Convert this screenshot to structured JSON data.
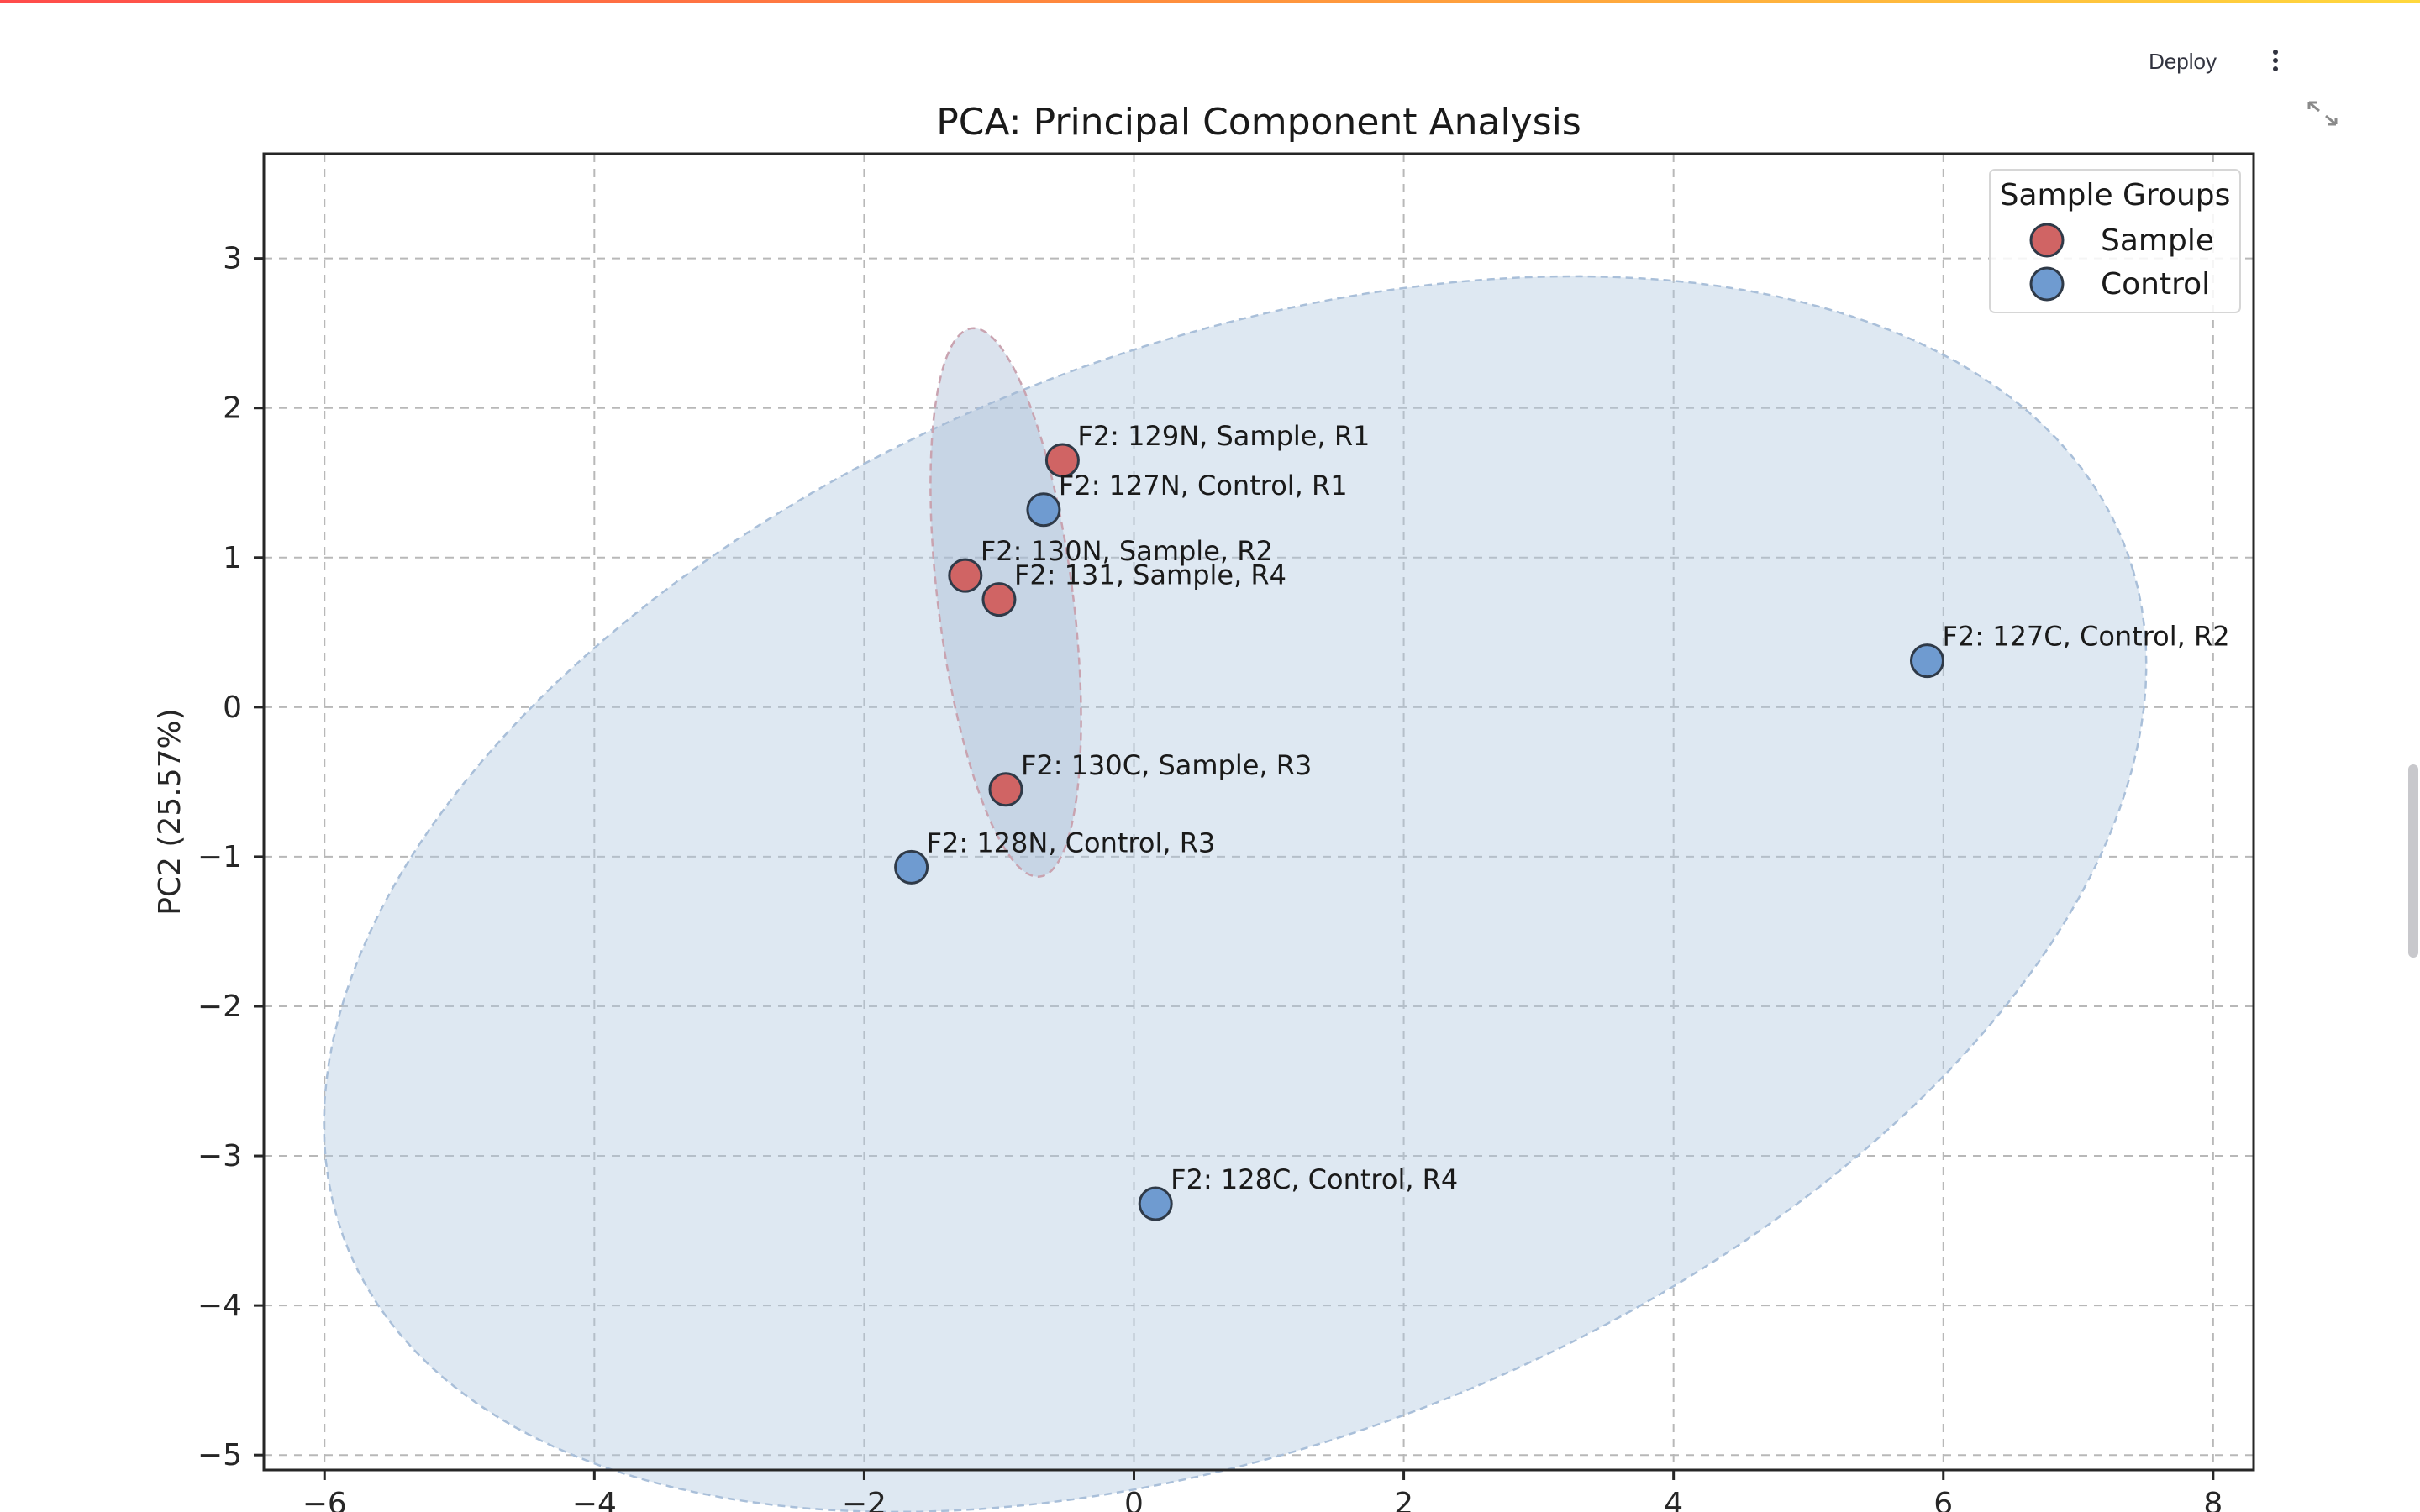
{
  "header": {
    "deploy_label": "Deploy",
    "menu_icon": "more-vertical-icon",
    "fullscreen_icon": "fullscreen-expand-icon"
  },
  "colors": {
    "accent_gradient": [
      "#ff4b4b",
      "#ffd83d"
    ],
    "sample": "#d06464",
    "control": "#6f9bd0",
    "ellipse_fill": "#b0c7e0"
  },
  "chart_data": {
    "type": "scatter",
    "title": "PCA: Principal Component Analysis",
    "xlabel": "",
    "ylabel": "PC2 (25.57%)",
    "xlim": [
      -6.45,
      8.3
    ],
    "ylim": [
      -5.1,
      3.7
    ],
    "xticks": [
      -6,
      -4,
      -2,
      0,
      2,
      4,
      6,
      8
    ],
    "yticks": [
      -5,
      -4,
      -3,
      -2,
      -1,
      0,
      1,
      2,
      3
    ],
    "x_tick_labels": [
      "−6",
      "−4",
      "−2",
      "0",
      "2",
      "4",
      "6",
      "8"
    ],
    "y_tick_labels": [
      "−5",
      "−4",
      "−3",
      "−2",
      "−1",
      "0",
      "1",
      "2",
      "3"
    ],
    "grid": true,
    "legend": {
      "title": "Sample Groups",
      "placement": "top-right",
      "entries": [
        {
          "label": "Sample",
          "color": "#d06464"
        },
        {
          "label": "Control",
          "color": "#6f9bd0"
        }
      ]
    },
    "ellipses": [
      {
        "group": "Control",
        "cx": 0.75,
        "cy": -1.25,
        "rx": 7.0,
        "ry": 3.7,
        "angle": 18,
        "color": "#b0c7e0"
      },
      {
        "group": "Sample",
        "cx": -0.95,
        "cy": 0.7,
        "rx": 0.5,
        "ry": 1.85,
        "angle": 8,
        "color": "#a7b9d3"
      }
    ],
    "series": [
      {
        "name": "Sample",
        "color": "#d06464",
        "points": [
          {
            "x": -0.53,
            "y": 1.65,
            "label": "F2: 129N, Sample, R1"
          },
          {
            "x": -1.25,
            "y": 0.88,
            "label": "F2: 130N, Sample, R2"
          },
          {
            "x": -1.0,
            "y": 0.72,
            "label": "F2: 131, Sample, R4"
          },
          {
            "x": -0.95,
            "y": -0.55,
            "label": "F2: 130C, Sample, R3"
          }
        ]
      },
      {
        "name": "Control",
        "color": "#6f9bd0",
        "points": [
          {
            "x": -0.67,
            "y": 1.32,
            "label": "F2: 127N, Control, R1"
          },
          {
            "x": 5.88,
            "y": 0.31,
            "label": "F2: 127C, Control, R2"
          },
          {
            "x": -1.65,
            "y": -1.07,
            "label": "F2: 128N, Control, R3"
          },
          {
            "x": 0.16,
            "y": -3.32,
            "label": "F2: 128C, Control, R4"
          }
        ]
      }
    ]
  }
}
